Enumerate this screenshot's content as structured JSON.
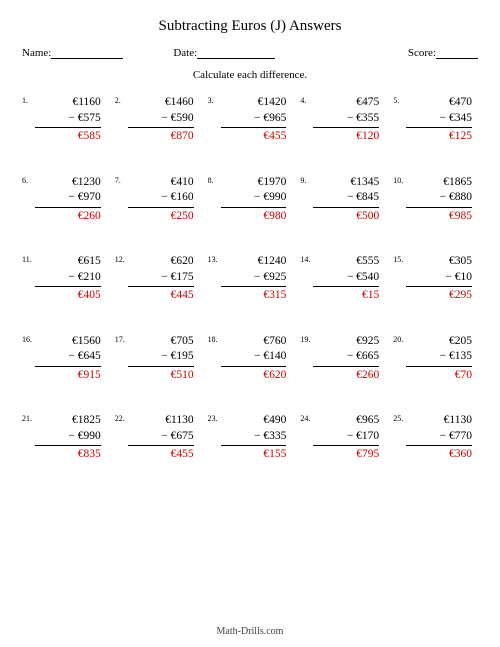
{
  "title": "Subtracting Euros (J) Answers",
  "labels": {
    "name": "Name:",
    "date": "Date:",
    "score": "Score:"
  },
  "instruction": "Calculate each difference.",
  "footer": "Math-Drills.com",
  "currency": "€",
  "minus": "−",
  "answer_color": "#cc0000",
  "text_color": "#000000",
  "font_family": "Times New Roman, serif",
  "blank_widths": {
    "name": 72,
    "date": 78,
    "score": 42
  },
  "problems": [
    {
      "n": 1,
      "m": 1160,
      "s": 575,
      "a": 585
    },
    {
      "n": 2,
      "m": 1460,
      "s": 590,
      "a": 870
    },
    {
      "n": 3,
      "m": 1420,
      "s": 965,
      "a": 455
    },
    {
      "n": 4,
      "m": 475,
      "s": 355,
      "a": 120
    },
    {
      "n": 5,
      "m": 470,
      "s": 345,
      "a": 125
    },
    {
      "n": 6,
      "m": 1230,
      "s": 970,
      "a": 260
    },
    {
      "n": 7,
      "m": 410,
      "s": 160,
      "a": 250
    },
    {
      "n": 8,
      "m": 1970,
      "s": 990,
      "a": 980
    },
    {
      "n": 9,
      "m": 1345,
      "s": 845,
      "a": 500
    },
    {
      "n": 10,
      "m": 1865,
      "s": 880,
      "a": 985
    },
    {
      "n": 11,
      "m": 615,
      "s": 210,
      "a": 405
    },
    {
      "n": 12,
      "m": 620,
      "s": 175,
      "a": 445
    },
    {
      "n": 13,
      "m": 1240,
      "s": 925,
      "a": 315
    },
    {
      "n": 14,
      "m": 555,
      "s": 540,
      "a": 15
    },
    {
      "n": 15,
      "m": 305,
      "s": 10,
      "a": 295
    },
    {
      "n": 16,
      "m": 1560,
      "s": 645,
      "a": 915
    },
    {
      "n": 17,
      "m": 705,
      "s": 195,
      "a": 510
    },
    {
      "n": 18,
      "m": 760,
      "s": 140,
      "a": 620
    },
    {
      "n": 19,
      "m": 925,
      "s": 665,
      "a": 260
    },
    {
      "n": 20,
      "m": 205,
      "s": 135,
      "a": 70
    },
    {
      "n": 21,
      "m": 1825,
      "s": 990,
      "a": 835
    },
    {
      "n": 22,
      "m": 1130,
      "s": 675,
      "a": 455
    },
    {
      "n": 23,
      "m": 490,
      "s": 335,
      "a": 155
    },
    {
      "n": 24,
      "m": 965,
      "s": 170,
      "a": 795
    },
    {
      "n": 25,
      "m": 1130,
      "s": 770,
      "a": 360
    }
  ]
}
